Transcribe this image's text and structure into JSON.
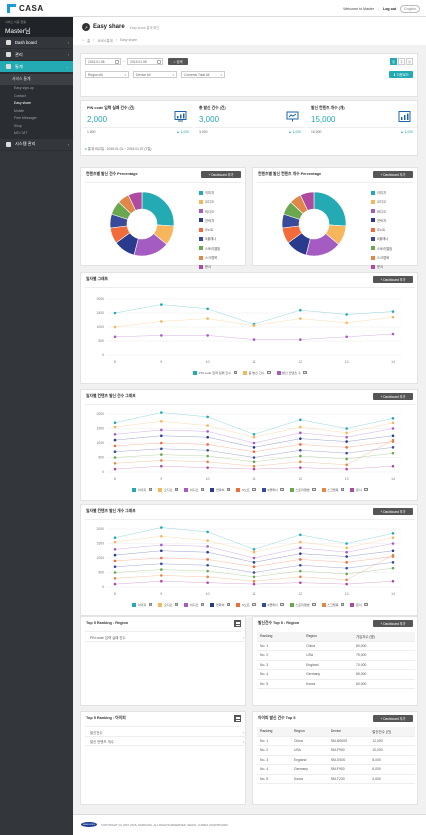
{
  "app": {
    "name": "CASA",
    "welcome": "Welcome to Master",
    "logout": "Log out",
    "lang": "English"
  },
  "sidebar": {
    "service": "서비스 이용 현황",
    "user": "Master님",
    "items": [
      {
        "label": "Dash board"
      },
      {
        "label": "관리"
      },
      {
        "label": "통계"
      }
    ],
    "sub_header": "서비스 통계",
    "sub_items": [
      "Easy sign-up",
      "Contact",
      "Easy share",
      "Mobile",
      "Free Messager",
      "Shop",
      "MO / MT"
    ],
    "last": "시스템 관리"
  },
  "page": {
    "title": "Easy share",
    "desc": "Easy share 통계 확인",
    "crumbs": [
      "홈",
      "서비스통계",
      "Easy share"
    ]
  },
  "filter": {
    "date_from": "2015.01.08",
    "date_to": "2015.01.08",
    "search": "검색",
    "region": "Region All",
    "device": "Device All",
    "contents": "Contents Total All",
    "excel": "다운로드"
  },
  "stats": [
    {
      "label": "PIN code 입력 실패 건수 (건)",
      "value": "2,000",
      "prev": "1,800",
      "change": "▲ 1.000"
    },
    {
      "label": "총 발신 건수 (건)",
      "value": "3,000",
      "prev": "3,000",
      "change": "▲ 1.000"
    },
    {
      "label": "발신 컨텐츠 개수 (개)",
      "value": "15,000",
      "prev": "15,000",
      "change": "▲ 1.000"
    }
  ],
  "period": "통계 비교일 : 2015.01.01 ~ 2015.01.07 (7일)",
  "pies": [
    {
      "title": "컨텐츠별 발신 건수 Percentage",
      "button": "Dashboard 추가"
    },
    {
      "title": "컨텐츠별 발신 컨텐츠 개수 Percentage",
      "button": "Dashboard 추가"
    }
  ],
  "pie_legend": [
    "이미지",
    "오디오",
    "비디오",
    "연락처",
    "S노트",
    "S플래너",
    "스토리앨범",
    "스크랩북",
    "문서"
  ],
  "charts": {
    "daily": {
      "title": "일자별 그래프",
      "button": "Dashboard 추가"
    },
    "content_daily": {
      "title": "일자별 컨텐츠 발신 건수 그래프",
      "button": "Dashboard 추가"
    },
    "content_count": {
      "title": "일자별 컨텐츠 발신 개수 그래프",
      "button": "Dashboard 추가"
    }
  },
  "chart_data": [
    {
      "type": "pie",
      "labels": [
        "이미지",
        "오디오",
        "비디오",
        "연락처",
        "S노트",
        "S플래너",
        "스토리앨범",
        "스크랩북",
        "문서"
      ],
      "values": [
        26,
        10,
        18,
        11,
        8,
        7,
        7,
        6,
        7
      ]
    },
    {
      "type": "pie",
      "labels": [
        "이미지",
        "오디오",
        "비디오",
        "연락처",
        "S노트",
        "S플래너",
        "스토리앨범",
        "스크랩북",
        "문서"
      ],
      "values": [
        26,
        10,
        18,
        11,
        8,
        7,
        7,
        6,
        7
      ]
    },
    {
      "type": "line",
      "categories": [
        "8",
        "9",
        "10",
        "11",
        "12",
        "13",
        "14"
      ],
      "ylim": [
        0,
        2000
      ],
      "yticks": [
        "0",
        "500",
        "1000",
        "1500",
        "2000"
      ],
      "series": [
        {
          "name": "PIN code 입력 실패 건수",
          "values": [
            1500,
            1800,
            1650,
            1100,
            1600,
            1450,
            1550
          ]
        },
        {
          "name": "총 발신 건수",
          "values": [
            1000,
            1200,
            1300,
            1050,
            1300,
            1150,
            1350
          ]
        },
        {
          "name": "발신 컨텐츠 수",
          "values": [
            650,
            700,
            700,
            550,
            550,
            650,
            750
          ]
        }
      ]
    },
    {
      "type": "line",
      "categories": [
        "8",
        "9",
        "10",
        "11",
        "12",
        "13",
        "14"
      ],
      "ylim": [
        0,
        2000
      ],
      "yticks": [
        "0",
        "500",
        "1000",
        "1500",
        "2000"
      ],
      "series": [
        {
          "name": "이미지",
          "values": [
            1700,
            2050,
            1900,
            1300,
            1800,
            1500,
            1850
          ]
        },
        {
          "name": "오디오",
          "values": [
            1550,
            1750,
            1600,
            1200,
            1550,
            1350,
            1700
          ]
        },
        {
          "name": "비디오",
          "values": [
            1300,
            1450,
            1400,
            1000,
            1350,
            1200,
            1500
          ]
        },
        {
          "name": "연락처",
          "values": [
            1100,
            1250,
            1200,
            850,
            1150,
            1050,
            1250
          ]
        },
        {
          "name": "S노트",
          "values": [
            900,
            1000,
            950,
            700,
            950,
            850,
            1050
          ]
        },
        {
          "name": "S플래너",
          "values": [
            700,
            800,
            750,
            500,
            750,
            650,
            850
          ]
        },
        {
          "name": "스토리앨범",
          "values": [
            500,
            600,
            550,
            350,
            550,
            450,
            650
          ]
        },
        {
          "name": "스크랩북",
          "values": [
            300,
            400,
            350,
            200,
            350,
            250,
            1100
          ]
        },
        {
          "name": "문서",
          "values": [
            100,
            200,
            150,
            100,
            150,
            100,
            200
          ]
        }
      ]
    },
    {
      "type": "line",
      "categories": [
        "8",
        "9",
        "10",
        "11",
        "12",
        "13",
        "14"
      ],
      "ylim": [
        0,
        2000
      ],
      "yticks": [
        "0",
        "500",
        "1000",
        "1500",
        "2000"
      ],
      "series": [
        {
          "name": "이미지",
          "values": [
            1700,
            2050,
            1900,
            1300,
            1800,
            1500,
            1850
          ]
        },
        {
          "name": "오디오",
          "values": [
            1550,
            1750,
            1600,
            1200,
            1550,
            1350,
            1700
          ]
        },
        {
          "name": "비디오",
          "values": [
            1300,
            1450,
            1400,
            1000,
            1350,
            1200,
            1500
          ]
        },
        {
          "name": "연락처",
          "values": [
            1100,
            1250,
            1200,
            850,
            1150,
            1050,
            1250
          ]
        },
        {
          "name": "S노트",
          "values": [
            900,
            1000,
            950,
            700,
            950,
            850,
            1050
          ]
        },
        {
          "name": "S플래너",
          "values": [
            700,
            800,
            750,
            500,
            750,
            650,
            850
          ]
        },
        {
          "name": "스토리앨범",
          "values": [
            500,
            600,
            550,
            350,
            550,
            450,
            650
          ]
        },
        {
          "name": "스크랩북",
          "values": [
            300,
            400,
            350,
            200,
            350,
            250,
            1100
          ]
        },
        {
          "name": "문서",
          "values": [
            100,
            200,
            150,
            100,
            150,
            100,
            200
          ]
        }
      ]
    }
  ],
  "colors": {
    "c1": "#23aab2",
    "c2": "#f7b55c",
    "c3": "#a45bc2",
    "c4": "#2a3a8c",
    "c5": "#f26b3a",
    "c6": "#3a4a9a",
    "c7": "#6aa84f",
    "c8": "#e0884a",
    "c9": "#b04aa0"
  },
  "rank_region": {
    "title": "Top 5 Ranking : Region",
    "items": [
      "PIN code 입력 실패 건수"
    ]
  },
  "region_table": {
    "title": "발신건수 Top 5 : Region",
    "button": "Dashboard 추가",
    "headers": [
      "Ranking",
      "Region",
      "가입자수 (명)"
    ],
    "rows": [
      [
        "No. 1",
        "China",
        "80,000"
      ],
      [
        "No. 2",
        "USA",
        "75,000"
      ],
      [
        "No. 3",
        "England",
        "70,000"
      ],
      [
        "No. 4",
        "Germany",
        "65,000"
      ],
      [
        "No. 5",
        "Korea",
        "60,000"
      ]
    ]
  },
  "rank_device": {
    "title": "Top 5 Ranking : 아이피",
    "items": [
      "발신건수",
      "발신 컨텐츠 개수"
    ]
  },
  "device_table": {
    "title": "아이피 발신 건수 Top 5",
    "button": "Dashboard 추가",
    "headers": [
      "Ranking",
      "Region",
      "Device",
      "발신건수 (건)"
    ],
    "rows": [
      [
        "No. 1",
        "China",
        "SM-N900S",
        "12,000"
      ],
      [
        "No. 2",
        "USA",
        "SM-F900",
        "10,000"
      ],
      [
        "No. 3",
        "England",
        "SM-G920",
        "8,000"
      ],
      [
        "No. 4",
        "Germany",
        "SM-F900",
        "6,000"
      ],
      [
        "No. 5",
        "Korea",
        "SM-T230",
        "4,000"
      ]
    ]
  },
  "footer": {
    "logo": "SAMSUNG",
    "copy": "COPYRIGHT (C) 2007-2016, SAMSUNG. ALL RIGHTS RESERVED. SEOUL, KOREA (O2)6789-0000"
  }
}
